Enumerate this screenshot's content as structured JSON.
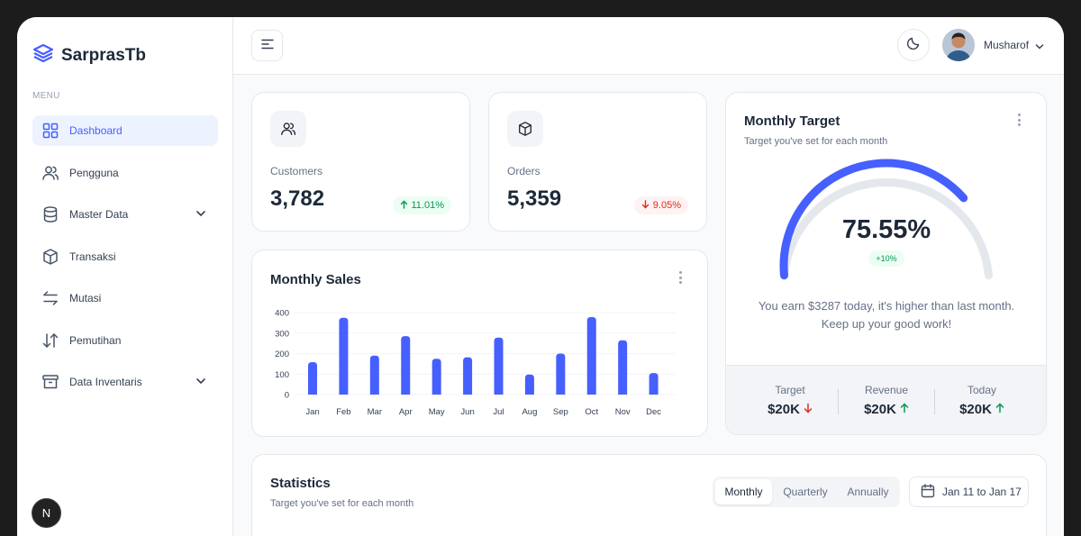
{
  "brand": {
    "name": "SarprasTb"
  },
  "sidebar": {
    "menu_label": "MENU",
    "items": [
      {
        "label": "Dashboard",
        "icon": "grid-icon",
        "active": true
      },
      {
        "label": "Pengguna",
        "icon": "users-icon"
      },
      {
        "label": "Master Data",
        "icon": "database-icon",
        "has_submenu": true
      },
      {
        "label": "Transaksi",
        "icon": "box-icon"
      },
      {
        "label": "Mutasi",
        "icon": "swap-icon"
      },
      {
        "label": "Pemutihan",
        "icon": "sort-icon"
      },
      {
        "label": "Data Inventaris",
        "icon": "archive-icon",
        "has_submenu": true
      }
    ],
    "badge": "N"
  },
  "topbar": {
    "user_name": "Musharof"
  },
  "customers": {
    "label": "Customers",
    "value": "3,782",
    "change": "11.01%",
    "trend": "up"
  },
  "orders": {
    "label": "Orders",
    "value": "5,359",
    "change": "9.05%",
    "trend": "down"
  },
  "monthly_sales": {
    "title": "Monthly Sales"
  },
  "chart_data": {
    "type": "bar",
    "categories": [
      "Jan",
      "Feb",
      "Mar",
      "Apr",
      "May",
      "Jun",
      "Jul",
      "Aug",
      "Sep",
      "Oct",
      "Nov",
      "Dec"
    ],
    "values": [
      158,
      375,
      190,
      285,
      175,
      182,
      278,
      98,
      200,
      378,
      265,
      105
    ],
    "ylim": [
      0,
      400
    ],
    "yticks": [
      "0",
      "100",
      "200",
      "300",
      "400"
    ],
    "grid": true,
    "color": "#465fff"
  },
  "monthly_target": {
    "title": "Monthly Target",
    "subtitle": "Target you've set for each month",
    "percent_value": 75.55,
    "percent": "75.55%",
    "change": "+10%",
    "message_line1": "You earn $3287 today, it's higher than last month.",
    "message_line2": "Keep up your good work!",
    "footer": [
      {
        "label": "Target",
        "value": "$20K",
        "trend": "down"
      },
      {
        "label": "Revenue",
        "value": "$20K",
        "trend": "up"
      },
      {
        "label": "Today",
        "value": "$20K",
        "trend": "up"
      }
    ]
  },
  "statistics": {
    "title": "Statistics",
    "subtitle": "Target you've set for each month",
    "tabs": [
      "Monthly",
      "Quarterly",
      "Annually"
    ],
    "active_tab": "Monthly",
    "date_range": "Jan 11 to Jan 17"
  },
  "colors": {
    "accent": "#465fff",
    "up": "#039855",
    "down": "#d92d20"
  }
}
